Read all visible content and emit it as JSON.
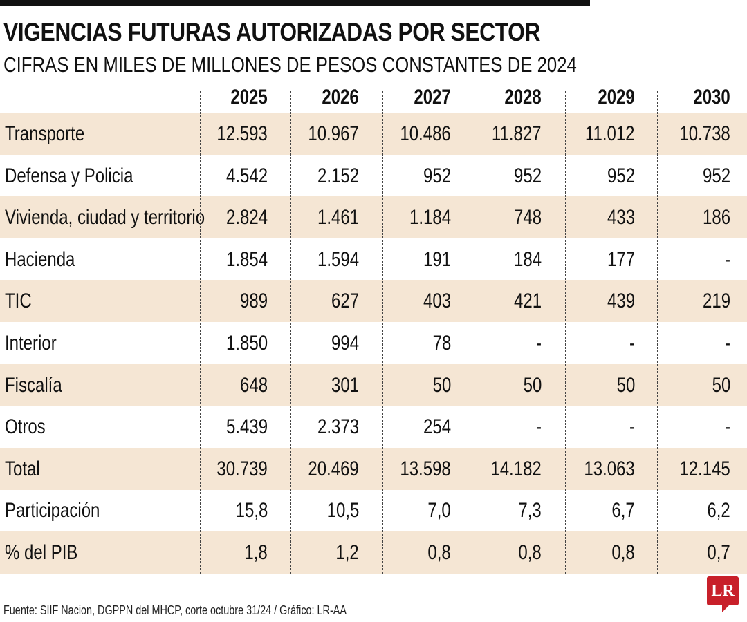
{
  "title": "VIGENCIAS FUTURAS AUTORIZADAS POR SECTOR",
  "subtitle": "CIFRAS EN MILES DE MILLONES DE PESOS CONSTANTES DE 2024",
  "footer": "Fuente: SIIF Nacion, DGPPN del MHCP, corte octubre 31/24 / Gráfico: LR-AA",
  "logo_text": "LR",
  "colors": {
    "row_shade": "#f5e6d4",
    "logo": "#c8202a"
  },
  "chart_data": {
    "type": "table",
    "columns": [
      "2025",
      "2026",
      "2027",
      "2028",
      "2029",
      "2030"
    ],
    "rows": [
      {
        "label": "Transporte",
        "values": [
          "12.593",
          "10.967",
          "10.486",
          "11.827",
          "11.012",
          "10.738"
        ]
      },
      {
        "label": "Defensa y Policia",
        "values": [
          "4.542",
          "2.152",
          "952",
          "952",
          "952",
          "952"
        ]
      },
      {
        "label": "Vivienda, ciudad y territorio",
        "values": [
          "2.824",
          "1.461",
          "1.184",
          "748",
          "433",
          "186"
        ]
      },
      {
        "label": "Hacienda",
        "values": [
          "1.854",
          "1.594",
          "191",
          "184",
          "177",
          "-"
        ]
      },
      {
        "label": "TIC",
        "values": [
          "989",
          "627",
          "403",
          "421",
          "439",
          "219"
        ]
      },
      {
        "label": "Interior",
        "values": [
          "1.850",
          "994",
          "78",
          "-",
          "-",
          "-"
        ]
      },
      {
        "label": "Fiscalía",
        "values": [
          "648",
          "301",
          "50",
          "50",
          "50",
          "50"
        ]
      },
      {
        "label": "Otros",
        "values": [
          "5.439",
          "2.373",
          "254",
          "-",
          "-",
          "-"
        ]
      },
      {
        "label": "Total",
        "values": [
          "30.739",
          "20.469",
          "13.598",
          "14.182",
          "13.063",
          "12.145"
        ]
      },
      {
        "label": "Participación",
        "values": [
          "15,8",
          "10,5",
          "7,0",
          "7,3",
          "6,7",
          "6,2"
        ]
      },
      {
        "label": "% del PIB",
        "values": [
          "1,8",
          "1,2",
          "0,8",
          "0,8",
          "0,8",
          "0,7"
        ]
      }
    ]
  }
}
